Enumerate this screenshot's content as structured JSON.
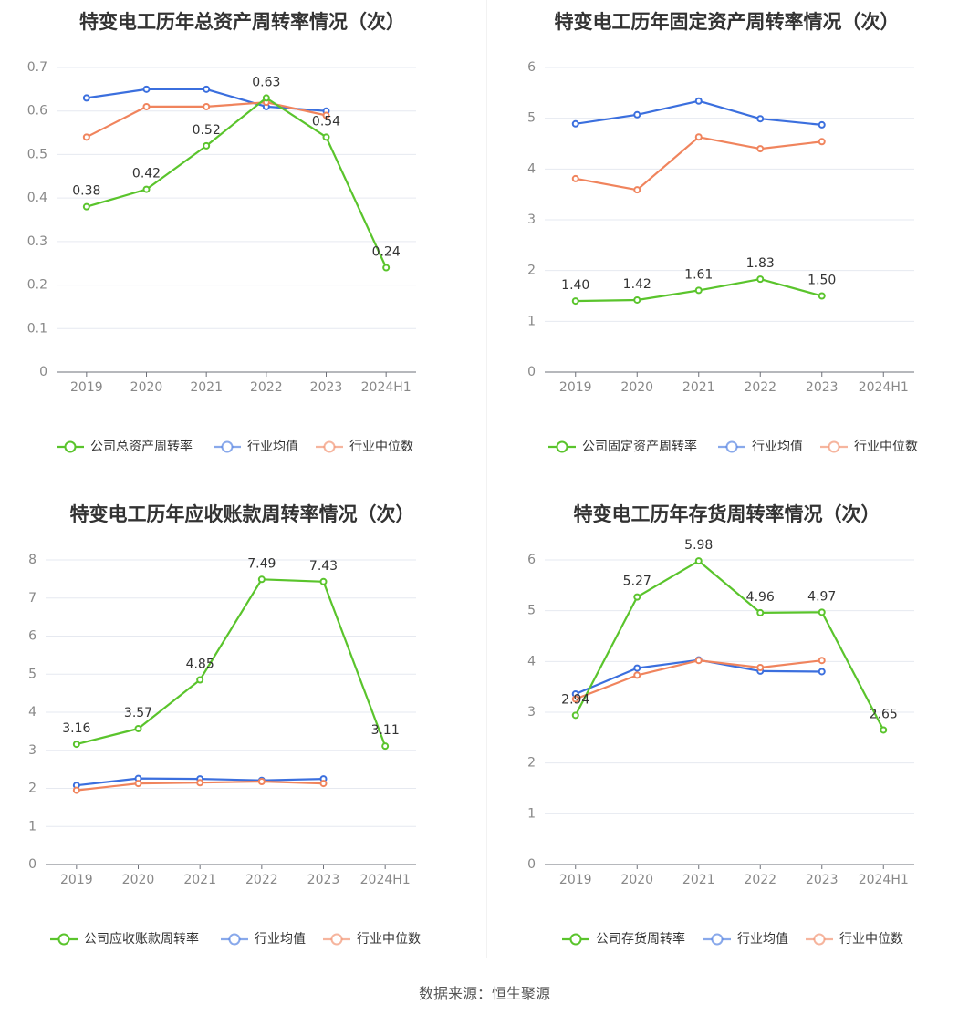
{
  "source_text": "数据来源：恒生聚源",
  "colors": {
    "company": "#5ac42c",
    "mean": "#3b6fde",
    "median": "#f0845d"
  },
  "chart_data": [
    {
      "type": "line",
      "title": "特变电工历年总资产周转率情况（次）",
      "categories": [
        "2019",
        "2020",
        "2021",
        "2022",
        "2023",
        "2024H1"
      ],
      "ylim": [
        0,
        0.7
      ],
      "yticks": [
        "0",
        "0.1",
        "0.2",
        "0.3",
        "0.4",
        "0.5",
        "0.6",
        "0.7"
      ],
      "series": [
        {
          "name": "公司总资产周转率",
          "role": "company",
          "values": [
            0.38,
            0.42,
            0.52,
            0.63,
            0.54,
            0.24
          ],
          "labels": [
            "0.38",
            "0.42",
            "0.52",
            "0.63",
            "0.54",
            "0.24"
          ]
        },
        {
          "name": "行业均值",
          "role": "mean",
          "values": [
            0.63,
            0.65,
            0.65,
            0.61,
            0.6,
            null
          ]
        },
        {
          "name": "行业中位数",
          "role": "median",
          "values": [
            0.54,
            0.61,
            0.61,
            0.62,
            0.59,
            null
          ]
        }
      ]
    },
    {
      "type": "line",
      "title": "特变电工历年固定资产周转率情况（次）",
      "categories": [
        "2019",
        "2020",
        "2021",
        "2022",
        "2023",
        "2024H1"
      ],
      "ylim": [
        0,
        6
      ],
      "yticks": [
        "0",
        "1",
        "2",
        "3",
        "4",
        "5",
        "6"
      ],
      "series": [
        {
          "name": "公司固定资产周转率",
          "role": "company",
          "values": [
            1.4,
            1.42,
            1.61,
            1.83,
            1.5,
            null
          ],
          "labels": [
            "1.40",
            "1.42",
            "1.61",
            "1.83",
            "1.50",
            ""
          ]
        },
        {
          "name": "行业均值",
          "role": "mean",
          "values": [
            4.89,
            5.07,
            5.34,
            4.99,
            4.87,
            null
          ]
        },
        {
          "name": "行业中位数",
          "role": "median",
          "values": [
            3.81,
            3.59,
            4.63,
            4.4,
            4.54,
            null
          ]
        }
      ]
    },
    {
      "type": "line",
      "title": "特变电工历年应收账款周转率情况（次）",
      "categories": [
        "2019",
        "2020",
        "2021",
        "2022",
        "2023",
        "2024H1"
      ],
      "ylim": [
        0,
        8
      ],
      "yticks": [
        "0",
        "1",
        "2",
        "3",
        "4",
        "5",
        "6",
        "7",
        "8"
      ],
      "series": [
        {
          "name": "公司应收账款周转率",
          "role": "company",
          "values": [
            3.16,
            3.57,
            4.85,
            7.49,
            7.43,
            3.11
          ],
          "labels": [
            "3.16",
            "3.57",
            "4.85",
            "7.49",
            "7.43",
            "3.11"
          ]
        },
        {
          "name": "行业均值",
          "role": "mean",
          "values": [
            2.08,
            2.26,
            2.25,
            2.21,
            2.25,
            null
          ]
        },
        {
          "name": "行业中位数",
          "role": "median",
          "values": [
            1.95,
            2.13,
            2.15,
            2.18,
            2.13,
            null
          ]
        }
      ]
    },
    {
      "type": "line",
      "title": "特变电工历年存货周转率情况（次）",
      "categories": [
        "2019",
        "2020",
        "2021",
        "2022",
        "2023",
        "2024H1"
      ],
      "ylim": [
        0,
        6
      ],
      "yticks": [
        "0",
        "1",
        "2",
        "3",
        "4",
        "5",
        "6"
      ],
      "series": [
        {
          "name": "公司存货周转率",
          "role": "company",
          "values": [
            2.94,
            5.27,
            5.98,
            4.96,
            4.97,
            2.65
          ],
          "labels": [
            "2.94",
            "5.27",
            "5.98",
            "4.96",
            "4.97",
            "2.65"
          ]
        },
        {
          "name": "行业均值",
          "role": "mean",
          "values": [
            3.36,
            3.87,
            4.03,
            3.81,
            3.8,
            null
          ]
        },
        {
          "name": "行业中位数",
          "role": "median",
          "values": [
            3.26,
            3.73,
            4.02,
            3.88,
            4.02,
            null
          ]
        }
      ]
    }
  ]
}
